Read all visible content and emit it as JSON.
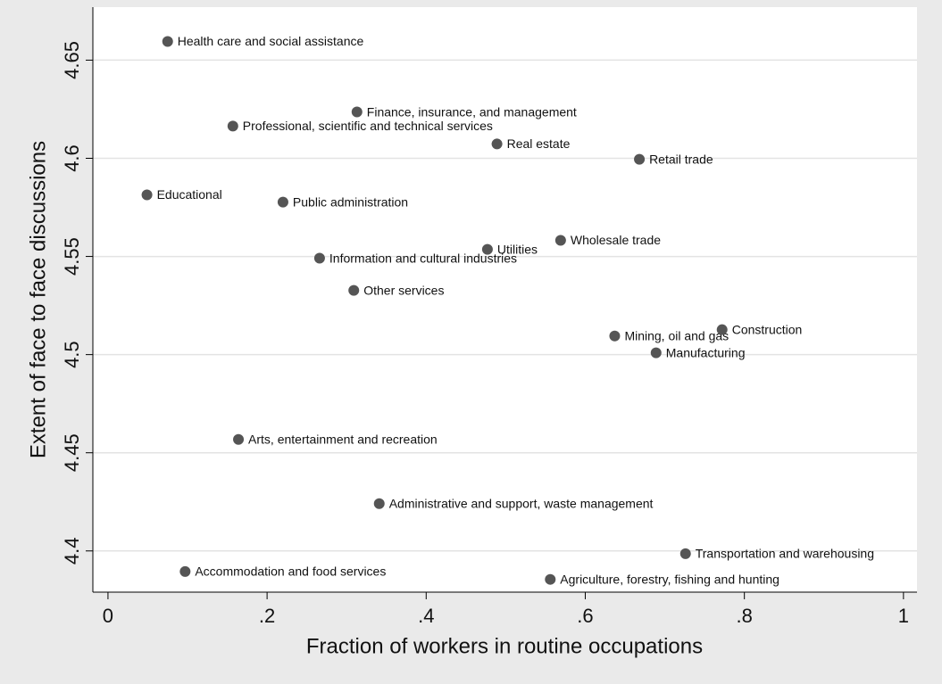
{
  "chart_data": {
    "type": "scatter",
    "x_label": "Fraction of workers in routine occupations",
    "y_label": "Extent of face to face discussions",
    "color": "#555555",
    "grid": true,
    "xlim": [
      -0.019,
      1.017
    ],
    "ylim": [
      4.379,
      4.677
    ],
    "xticks": [
      0,
      {
        "value": 0.2,
        "label": ".2"
      },
      {
        "value": 0.4,
        "label": ".4"
      },
      {
        "value": 0.6,
        "label": ".6"
      },
      {
        "value": 0.8,
        "label": ".8"
      },
      1
    ],
    "yticks": [
      4.4,
      4.45,
      4.5,
      4.55,
      4.6,
      4.65
    ],
    "labels": [
      "Health care and social assistance",
      "Finance, insurance, and management",
      "Professional, scientific and technical services",
      "Real estate",
      "Retail trade",
      "Educational",
      "Public administration",
      "Utilities",
      "Wholesale trade",
      "Information and cultural industries",
      "Other services",
      "Mining, oil and gas",
      "Construction",
      "Manufacturing",
      "Arts, entertainment and recreation",
      "Administrative and support, waste management",
      "Transportation and warehousing",
      "Accommodation and food services",
      "Agriculture, forestry, fishing and hunting"
    ],
    "x": [
      0.075,
      0.313,
      0.157,
      0.489,
      0.668,
      0.049,
      0.22,
      0.477,
      0.569,
      0.266,
      0.309,
      0.637,
      0.772,
      0.689,
      0.164,
      0.341,
      0.726,
      0.097,
      0.556
    ],
    "values": [
      4.6595,
      4.6236,
      4.6164,
      4.6073,
      4.5995,
      4.5814,
      4.5777,
      4.5536,
      4.5582,
      4.5491,
      4.5327,
      4.5095,
      4.5127,
      4.5009,
      4.4568,
      4.4241,
      4.3986,
      4.3895,
      4.3855
    ]
  }
}
